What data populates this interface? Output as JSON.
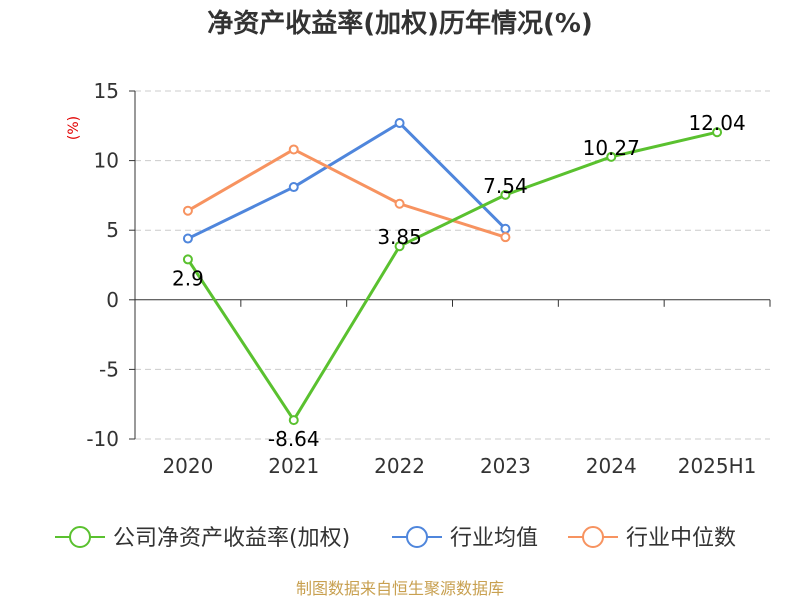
{
  "chart_data": {
    "type": "line",
    "title": "净资产收益率(加权)历年情况(%)",
    "ylabel": "(%)",
    "xlabel": "",
    "categories": [
      "2020",
      "2021",
      "2022",
      "2023",
      "2024",
      "2025H1"
    ],
    "ylim": [
      -10,
      15
    ],
    "yticks": [
      15,
      10,
      5,
      0,
      -5,
      -10
    ],
    "grid": true,
    "legend_position": "bottom",
    "series": [
      {
        "name": "公司净资产收益率(加权)",
        "color": "#5ac12f",
        "values": [
          2.9,
          -8.64,
          3.85,
          7.54,
          10.27,
          12.04
        ],
        "labels": [
          "2.9",
          "-8.64",
          "3.85",
          "7.54",
          "10.27",
          "12.04"
        ]
      },
      {
        "name": "行业均值",
        "color": "#4f86dc",
        "values": [
          4.4,
          8.1,
          12.7,
          5.1,
          null,
          null
        ]
      },
      {
        "name": "行业中位数",
        "color": "#f79360",
        "values": [
          6.4,
          10.8,
          6.9,
          4.5,
          null,
          null
        ]
      }
    ]
  },
  "footer": {
    "source": "制图数据来自恒生聚源数据库"
  }
}
